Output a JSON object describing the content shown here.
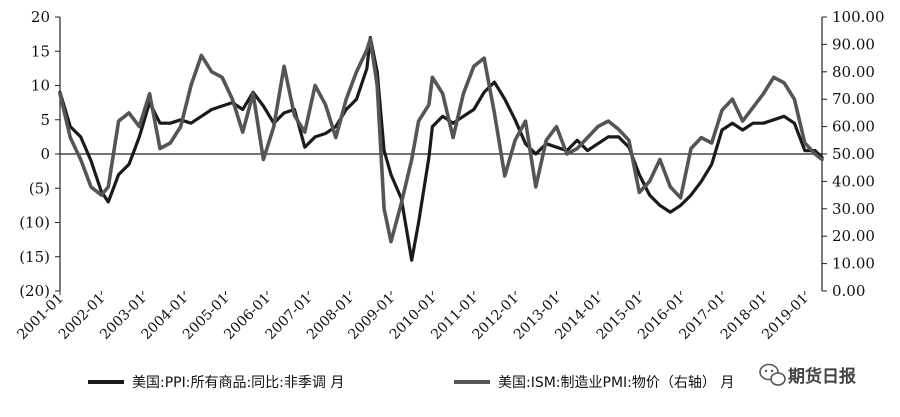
{
  "chart_data": {
    "type": "line",
    "title": "",
    "xlabel": "",
    "ylabel": "",
    "y_left": {
      "ticks": [
        "20",
        "15",
        "10",
        "5",
        "0",
        "(5)",
        "(10)",
        "(15)",
        "(20)"
      ],
      "range": [
        -20,
        20
      ]
    },
    "y_right": {
      "ticks": [
        "100.00",
        "90.00",
        "80.00",
        "70.00",
        "60.00",
        "50.00",
        "40.00",
        "30.00",
        "20.00",
        "10.00",
        "0.00"
      ],
      "range": [
        0,
        100
      ]
    },
    "x_ticks": [
      "2001-01",
      "2002-01",
      "2003-01",
      "2004-01",
      "2005-01",
      "2006-01",
      "2007-01",
      "2008-01",
      "2009-01",
      "2010-01",
      "2011-01",
      "2012-01",
      "2013-01",
      "2014-01",
      "2015-01",
      "2016-01",
      "2017-01",
      "2018-01",
      "2019-01"
    ],
    "x_range": [
      "2001-01",
      "2019-06"
    ],
    "grid": false,
    "legend_position": "bottom",
    "series": [
      {
        "name": "美国:PPI:所有商品:同比:非季调 月",
        "axis": "left",
        "color": "#1a1a1a",
        "points": [
          [
            "2001-01",
            9.0
          ],
          [
            "2001-04",
            4.0
          ],
          [
            "2001-07",
            2.5
          ],
          [
            "2001-10",
            -1.0
          ],
          [
            "2002-01",
            -5.5
          ],
          [
            "2002-03",
            -7.0
          ],
          [
            "2002-06",
            -3.0
          ],
          [
            "2002-09",
            -1.5
          ],
          [
            "2002-12",
            2.5
          ],
          [
            "2003-03",
            7.5
          ],
          [
            "2003-06",
            4.5
          ],
          [
            "2003-09",
            4.5
          ],
          [
            "2003-12",
            5.0
          ],
          [
            "2004-03",
            4.5
          ],
          [
            "2004-06",
            5.5
          ],
          [
            "2004-09",
            6.5
          ],
          [
            "2004-12",
            7.0
          ],
          [
            "2005-03",
            7.5
          ],
          [
            "2005-06",
            6.5
          ],
          [
            "2005-09",
            9.0
          ],
          [
            "2005-12",
            7.0
          ],
          [
            "2006-03",
            4.5
          ],
          [
            "2006-06",
            6.0
          ],
          [
            "2006-09",
            6.5
          ],
          [
            "2006-12",
            1.0
          ],
          [
            "2007-03",
            2.5
          ],
          [
            "2007-06",
            3.0
          ],
          [
            "2007-09",
            4.0
          ],
          [
            "2007-12",
            6.5
          ],
          [
            "2008-03",
            8.0
          ],
          [
            "2008-06",
            12.5
          ],
          [
            "2008-07",
            17.0
          ],
          [
            "2008-09",
            12.0
          ],
          [
            "2008-11",
            0.5
          ],
          [
            "2009-01",
            -3.0
          ],
          [
            "2009-04",
            -6.5
          ],
          [
            "2009-07",
            -15.5
          ],
          [
            "2009-09",
            -10.0
          ],
          [
            "2009-12",
            -0.5
          ],
          [
            "2010-01",
            4.0
          ],
          [
            "2010-04",
            5.5
          ],
          [
            "2010-07",
            4.5
          ],
          [
            "2010-10",
            5.5
          ],
          [
            "2011-01",
            6.5
          ],
          [
            "2011-04",
            9.0
          ],
          [
            "2011-07",
            10.5
          ],
          [
            "2011-10",
            8.0
          ],
          [
            "2012-01",
            5.0
          ],
          [
            "2012-04",
            1.5
          ],
          [
            "2012-07",
            0.0
          ],
          [
            "2012-10",
            1.5
          ],
          [
            "2013-01",
            1.0
          ],
          [
            "2013-04",
            0.5
          ],
          [
            "2013-07",
            2.0
          ],
          [
            "2013-10",
            0.5
          ],
          [
            "2014-01",
            1.5
          ],
          [
            "2014-04",
            2.5
          ],
          [
            "2014-07",
            2.5
          ],
          [
            "2014-10",
            1.0
          ],
          [
            "2015-01",
            -3.0
          ],
          [
            "2015-04",
            -6.0
          ],
          [
            "2015-07",
            -7.5
          ],
          [
            "2015-10",
            -8.5
          ],
          [
            "2016-01",
            -7.5
          ],
          [
            "2016-04",
            -6.0
          ],
          [
            "2016-07",
            -4.0
          ],
          [
            "2016-10",
            -1.5
          ],
          [
            "2017-01",
            3.5
          ],
          [
            "2017-04",
            4.5
          ],
          [
            "2017-07",
            3.5
          ],
          [
            "2017-10",
            4.5
          ],
          [
            "2018-01",
            4.5
          ],
          [
            "2018-04",
            5.0
          ],
          [
            "2018-07",
            5.5
          ],
          [
            "2018-10",
            4.5
          ],
          [
            "2019-01",
            0.5
          ],
          [
            "2019-04",
            0.5
          ],
          [
            "2019-06",
            -0.5
          ]
        ]
      },
      {
        "name": "美国:ISM:制造业PMI:物价（右轴） 月",
        "axis": "right",
        "color": "#555555",
        "points": [
          [
            "2001-01",
            72
          ],
          [
            "2001-04",
            56
          ],
          [
            "2001-07",
            48
          ],
          [
            "2001-10",
            38
          ],
          [
            "2002-01",
            35
          ],
          [
            "2002-03",
            38
          ],
          [
            "2002-06",
            62
          ],
          [
            "2002-09",
            65
          ],
          [
            "2002-12",
            60
          ],
          [
            "2003-03",
            72
          ],
          [
            "2003-06",
            52
          ],
          [
            "2003-09",
            54
          ],
          [
            "2003-12",
            60
          ],
          [
            "2004-03",
            75
          ],
          [
            "2004-06",
            86
          ],
          [
            "2004-09",
            80
          ],
          [
            "2004-12",
            78
          ],
          [
            "2005-03",
            70
          ],
          [
            "2005-06",
            58
          ],
          [
            "2005-09",
            72
          ],
          [
            "2005-12",
            48
          ],
          [
            "2006-03",
            60
          ],
          [
            "2006-06",
            82
          ],
          [
            "2006-09",
            64
          ],
          [
            "2006-12",
            58
          ],
          [
            "2007-03",
            75
          ],
          [
            "2007-06",
            68
          ],
          [
            "2007-09",
            56
          ],
          [
            "2007-12",
            70
          ],
          [
            "2008-03",
            80
          ],
          [
            "2008-06",
            88
          ],
          [
            "2008-07",
            92
          ],
          [
            "2008-09",
            75
          ],
          [
            "2008-11",
            30
          ],
          [
            "2009-01",
            18
          ],
          [
            "2009-04",
            32
          ],
          [
            "2009-07",
            48
          ],
          [
            "2009-09",
            62
          ],
          [
            "2009-12",
            68
          ],
          [
            "2010-01",
            78
          ],
          [
            "2010-04",
            72
          ],
          [
            "2010-07",
            56
          ],
          [
            "2010-10",
            72
          ],
          [
            "2011-01",
            82
          ],
          [
            "2011-04",
            85
          ],
          [
            "2011-07",
            65
          ],
          [
            "2011-10",
            42
          ],
          [
            "2012-01",
            55
          ],
          [
            "2012-04",
            62
          ],
          [
            "2012-07",
            38
          ],
          [
            "2012-10",
            55
          ],
          [
            "2013-01",
            60
          ],
          [
            "2013-04",
            50
          ],
          [
            "2013-07",
            52
          ],
          [
            "2013-10",
            56
          ],
          [
            "2014-01",
            60
          ],
          [
            "2014-04",
            62
          ],
          [
            "2014-07",
            59
          ],
          [
            "2014-10",
            55
          ],
          [
            "2015-01",
            36
          ],
          [
            "2015-04",
            40
          ],
          [
            "2015-07",
            48
          ],
          [
            "2015-10",
            38
          ],
          [
            "2016-01",
            34
          ],
          [
            "2016-04",
            52
          ],
          [
            "2016-07",
            56
          ],
          [
            "2016-10",
            54
          ],
          [
            "2017-01",
            66
          ],
          [
            "2017-04",
            70
          ],
          [
            "2017-07",
            62
          ],
          [
            "2017-10",
            67
          ],
          [
            "2018-01",
            72
          ],
          [
            "2018-04",
            78
          ],
          [
            "2018-07",
            76
          ],
          [
            "2018-10",
            70
          ],
          [
            "2019-01",
            54
          ],
          [
            "2019-04",
            50
          ],
          [
            "2019-06",
            48
          ]
        ]
      }
    ]
  },
  "watermark": {
    "text": "期货日报",
    "icon": "wechat-icon"
  }
}
